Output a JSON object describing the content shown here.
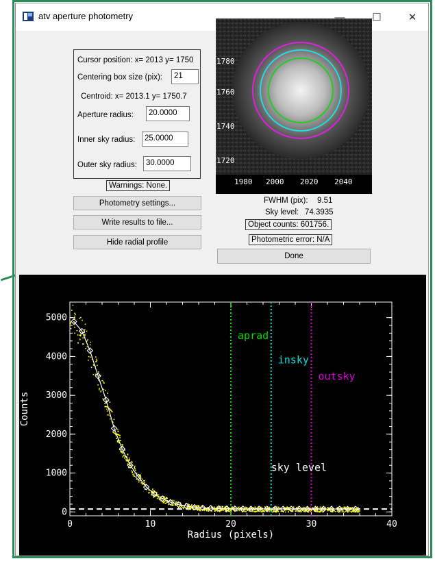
{
  "window": {
    "title": "atv aperture photometry",
    "controls": {
      "minimize": "—",
      "maximize": "☐",
      "close": "✕"
    }
  },
  "params": {
    "cursor_position": "Cursor position:  x= 2013 y= 1750",
    "centering_label": "Centering box size (pix):",
    "centering_value": "21",
    "centroid": "Centroid:   x= 2013.1 y= 1750.7",
    "aperture_label": "Aperture radius:",
    "aperture_value": "20.0000",
    "inner_label": "Inner sky radius:",
    "inner_value": "25.0000",
    "outer_label": "Outer sky radius:",
    "outer_value": "30.0000"
  },
  "warnings": "Warnings: None.",
  "buttons": {
    "settings": "Photometry settings...",
    "write": "Write results to file...",
    "hide": "Hide radial profile",
    "done": "Done"
  },
  "results": {
    "fwhm_label": "FWHM (pix):",
    "fwhm_value": "9.51",
    "sky_label": "Sky level:",
    "sky_value": "74.3935",
    "counts": "Object counts: 601756.",
    "error": "Photometric error: N/A"
  },
  "stamp": {
    "y_ticks": [
      "1780",
      "1760",
      "1740",
      "1720"
    ],
    "x_ticks": [
      "1980",
      "2000",
      "2020",
      "2040"
    ],
    "circle_colors": {
      "aperture": "#22cc22",
      "inner": "#22dddd",
      "outer": "#dd22dd"
    }
  },
  "chart_data": {
    "type": "scatter",
    "xlabel": "Radius (pixels)",
    "ylabel": "Counts",
    "xlim": [
      0,
      40
    ],
    "ylim": [
      -100,
      5400
    ],
    "x_ticks": [
      0,
      10,
      20,
      30,
      40
    ],
    "y_ticks": [
      0,
      1000,
      2000,
      3000,
      4000,
      5000
    ],
    "profile": {
      "x": [
        0.5,
        1.5,
        2.5,
        3.5,
        4.5,
        5.5,
        6.5,
        7.5,
        8.5,
        9.5,
        10.5,
        11.5,
        12.5,
        13.5,
        14.5,
        15.5,
        16.5,
        17.5,
        18.5,
        19.5,
        20.5,
        21.5,
        22.5,
        23.5,
        24.5,
        25.5,
        26.5,
        27.5,
        28.5,
        29.5,
        30.5,
        31.5,
        32.5,
        33.5,
        34.5,
        35.5
      ],
      "y": [
        4900,
        4650,
        4150,
        3500,
        2880,
        2150,
        1620,
        1200,
        900,
        640,
        460,
        340,
        250,
        190,
        150,
        120,
        105,
        95,
        90,
        85,
        82,
        80,
        79,
        78,
        77,
        77,
        76,
        76,
        76,
        75,
        75,
        75,
        75,
        74,
        74,
        74
      ]
    },
    "lines": [
      {
        "name": "aprad",
        "x": 20,
        "color": "#00dd00"
      },
      {
        "name": "insky",
        "x": 25,
        "color": "#00dddd"
      },
      {
        "name": "outsky",
        "x": 30,
        "color": "#dd00dd"
      }
    ],
    "sky_level": {
      "name": "sky level",
      "y": 74.3935,
      "color": "#ffffff"
    },
    "scatter_color": "#ffff00"
  }
}
